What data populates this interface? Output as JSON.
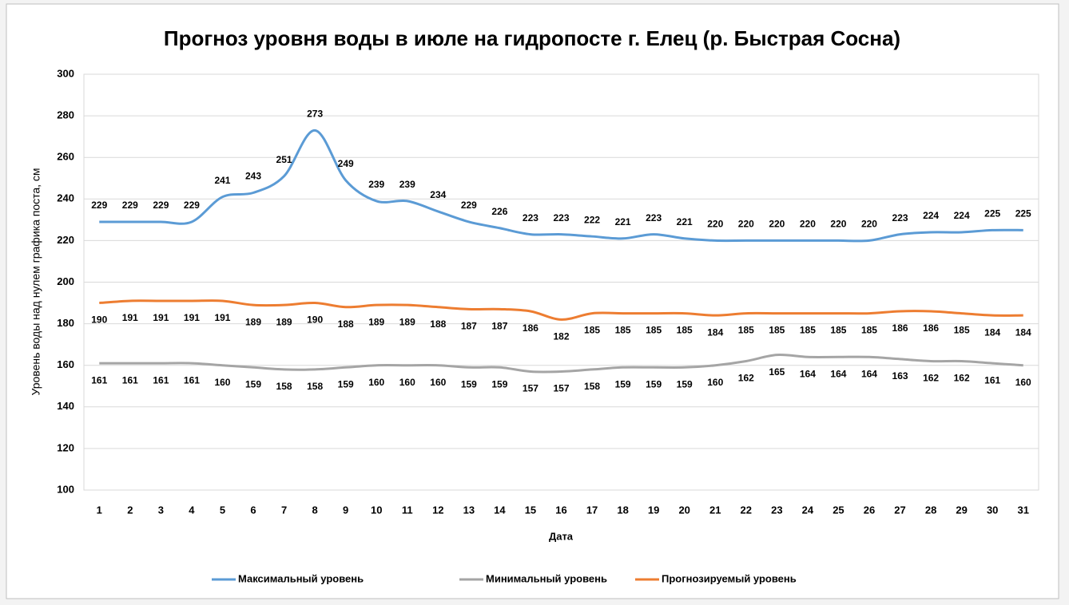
{
  "chart_data": {
    "type": "line",
    "title": "Прогноз уровня воды в июле на гидропосте г. Елец (р. Быстрая Сосна)",
    "x_label": "Дата",
    "y_label": "Уровень воды над нулем графика поста, см",
    "categories": [
      1,
      2,
      3,
      4,
      5,
      6,
      7,
      8,
      9,
      10,
      11,
      12,
      13,
      14,
      15,
      16,
      17,
      18,
      19,
      20,
      21,
      22,
      23,
      24,
      25,
      26,
      27,
      28,
      29,
      30,
      31
    ],
    "series": [
      {
        "name": "Максимальный уровень",
        "color": "#5b9bd5",
        "label_position": "above",
        "values": [
          229,
          229,
          229,
          229,
          241,
          243,
          251,
          273,
          249,
          239,
          239,
          234,
          229,
          226,
          223,
          223,
          222,
          221,
          223,
          221,
          220,
          220,
          220,
          220,
          220,
          220,
          223,
          224,
          224,
          225,
          225
        ]
      },
      {
        "name": "Минимальный уровень",
        "color": "#a5a5a5",
        "label_position": "below",
        "values": [
          161,
          161,
          161,
          161,
          160,
          159,
          158,
          158,
          159,
          160,
          160,
          160,
          159,
          159,
          157,
          157,
          158,
          159,
          159,
          159,
          160,
          162,
          165,
          164,
          164,
          164,
          163,
          162,
          162,
          161,
          160
        ]
      },
      {
        "name": "Прогнозируемый уровень",
        "color": "#ed7d31",
        "label_position": "below",
        "values": [
          190,
          191,
          191,
          191,
          191,
          189,
          189,
          190,
          188,
          189,
          189,
          188,
          187,
          187,
          186,
          182,
          185,
          185,
          185,
          185,
          184,
          185,
          185,
          185,
          185,
          185,
          186,
          186,
          185,
          184,
          184
        ]
      }
    ],
    "ylim": [
      100,
      300
    ],
    "yticks": [
      100,
      120,
      140,
      160,
      180,
      200,
      220,
      240,
      260,
      280,
      300
    ],
    "grid": true,
    "smooth": true,
    "legend": "bottom"
  }
}
